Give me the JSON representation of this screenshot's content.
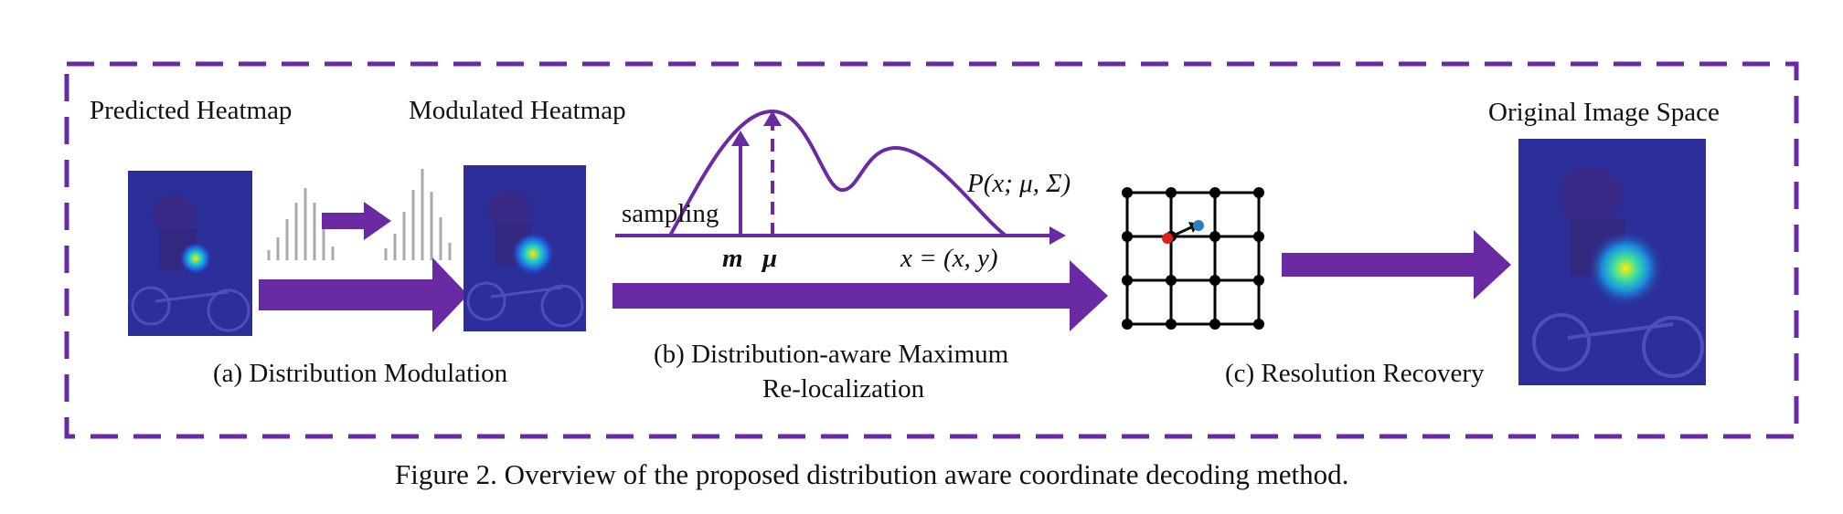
{
  "figure": {
    "caption": "Figure 2. Overview of the proposed distribution aware coordinate decoding method.",
    "labels": {
      "predicted_heatmap": "Predicted Heatmap",
      "modulated_heatmap": "Modulated Heatmap",
      "original_image_space": "Original Image Space",
      "sampling": "sampling",
      "m": "m",
      "mu": "μ",
      "xy": "x = (x, y)",
      "distribution": "P(x; μ, Σ)"
    },
    "stages": {
      "a": "(a) Distribution Modulation",
      "b_line1": "(b) Distribution-aware Maximum",
      "b_line2": "Re-localization",
      "c": "(c) Resolution Recovery"
    },
    "colors": {
      "accent": "#6a2aa3",
      "heat_bg": "#2c2f9a",
      "grid": "#000000",
      "red_point": "#e02020",
      "blue_point": "#2f7fc0",
      "histogram": "#aaaaaa"
    },
    "grid": {
      "rows": 4,
      "cols": 4
    }
  }
}
